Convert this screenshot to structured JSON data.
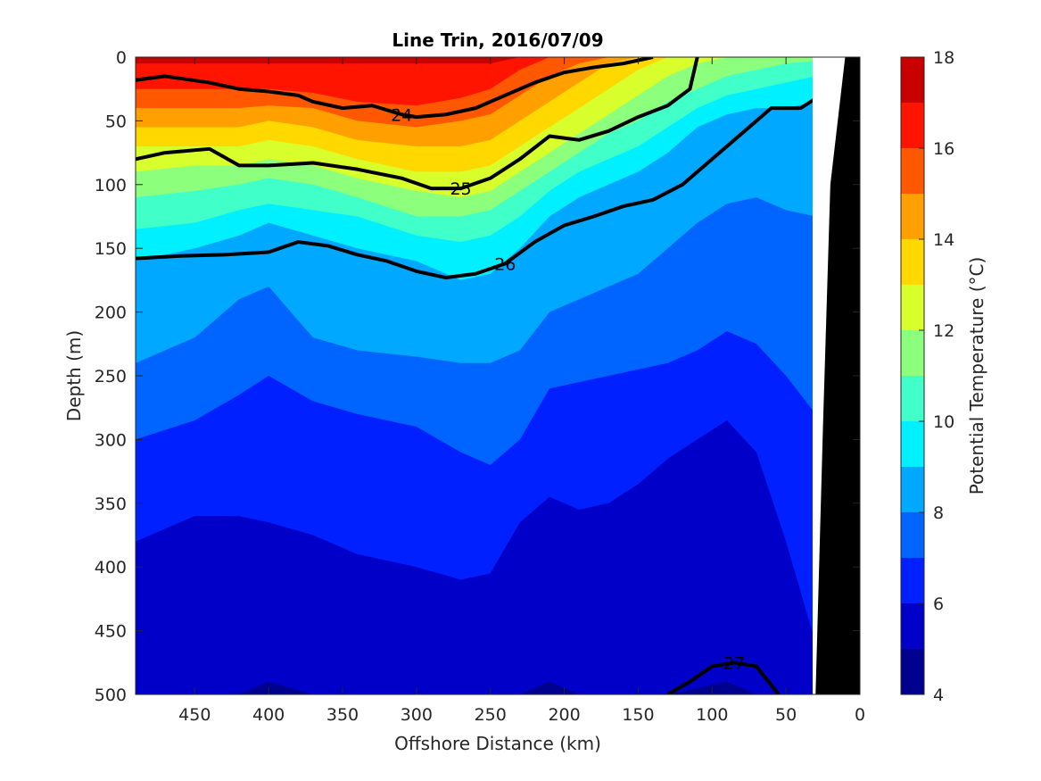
{
  "chart_data": {
    "type": "heatmap",
    "title": "Line Trin, 2016/07/09",
    "xlabel": "Offshore Distance (km)",
    "ylabel": "Depth (m)",
    "xlim": [
      490,
      0
    ],
    "ylim": [
      0,
      500
    ],
    "x_reversed": true,
    "y_reversed": true,
    "xticks": [
      450,
      400,
      350,
      300,
      250,
      200,
      150,
      100,
      50,
      0
    ],
    "yticks": [
      0,
      50,
      100,
      150,
      200,
      250,
      300,
      350,
      400,
      450,
      500
    ],
    "colorbar": {
      "label": "Potential Temperature (°C)",
      "min": 4,
      "max": 18,
      "ticks": [
        4,
        6,
        8,
        10,
        12,
        14,
        16,
        18
      ],
      "level_step": 1,
      "colors": [
        "#00008f",
        "#0000c8",
        "#0020ff",
        "#0064ff",
        "#00a8ff",
        "#00f0ff",
        "#40ffc8",
        "#8cff7c",
        "#d8ff2c",
        "#ffd800",
        "#ffa000",
        "#ff5800",
        "#ff1400",
        "#c80000"
      ]
    },
    "temperature_field": {
      "description_levels": "isotherm depths (m) at each offshore distance (km)",
      "x": [
        490,
        450,
        420,
        400,
        370,
        340,
        300,
        270,
        250,
        230,
        210,
        190,
        170,
        150,
        130,
        110,
        90,
        70,
        50,
        30
      ],
      "isotherm_depth": {
        "5": [
          500,
          500,
          500,
          490,
          500,
          500,
          500,
          500,
          500,
          500,
          490,
          500,
          500,
          500,
          500,
          495,
          490,
          500,
          500,
          500
        ],
        "6": [
          380,
          360,
          360,
          365,
          375,
          390,
          400,
          410,
          405,
          365,
          345,
          355,
          350,
          335,
          315,
          300,
          285,
          310,
          380,
          460
        ],
        "7": [
          300,
          285,
          265,
          250,
          270,
          280,
          290,
          310,
          320,
          300,
          260,
          255,
          250,
          245,
          240,
          230,
          215,
          225,
          250,
          280
        ],
        "8": [
          240,
          220,
          190,
          180,
          220,
          230,
          235,
          240,
          240,
          230,
          200,
          190,
          180,
          170,
          150,
          130,
          115,
          110,
          120,
          125
        ],
        "9": [
          160,
          150,
          140,
          130,
          140,
          150,
          160,
          175,
          170,
          150,
          125,
          110,
          100,
          90,
          75,
          55,
          45,
          40,
          40,
          35
        ],
        "10": [
          135,
          130,
          120,
          115,
          120,
          125,
          140,
          145,
          140,
          125,
          105,
          90,
          80,
          70,
          55,
          40,
          30,
          25,
          20,
          15
        ],
        "11": [
          110,
          105,
          100,
          95,
          100,
          110,
          125,
          125,
          120,
          105,
          90,
          75,
          60,
          50,
          35,
          25,
          15,
          10,
          5,
          3
        ],
        "12": [
          90,
          85,
          85,
          80,
          85,
          95,
          105,
          110,
          105,
          90,
          75,
          60,
          45,
          30,
          15,
          5,
          0,
          0,
          0,
          0
        ],
        "13": [
          70,
          70,
          70,
          65,
          70,
          80,
          90,
          90,
          85,
          70,
          55,
          40,
          25,
          10,
          0,
          0,
          0,
          0,
          0,
          0
        ],
        "14": [
          55,
          55,
          55,
          50,
          55,
          65,
          70,
          70,
          65,
          50,
          35,
          20,
          5,
          0,
          0,
          0,
          0,
          0,
          0,
          0
        ],
        "15": [
          40,
          40,
          40,
          38,
          40,
          50,
          55,
          50,
          45,
          30,
          15,
          5,
          0,
          0,
          0,
          0,
          0,
          0,
          0,
          0
        ],
        "16": [
          25,
          25,
          25,
          25,
          28,
          35,
          38,
          32,
          25,
          10,
          0,
          0,
          0,
          0,
          0,
          0,
          0,
          0,
          0,
          0
        ],
        "17": [
          5,
          5,
          5,
          5,
          5,
          5,
          5,
          5,
          5,
          0,
          0,
          0,
          0,
          0,
          0,
          0,
          0,
          0,
          0,
          0
        ]
      }
    },
    "density_contours": [
      {
        "level": 24,
        "label": "24",
        "bold": true,
        "points": [
          [
            490,
            18
          ],
          [
            470,
            15
          ],
          [
            440,
            20
          ],
          [
            420,
            25
          ],
          [
            400,
            27
          ],
          [
            380,
            30
          ],
          [
            370,
            35
          ],
          [
            350,
            40
          ],
          [
            330,
            38
          ],
          [
            310,
            45
          ],
          [
            300,
            47
          ],
          [
            280,
            45
          ],
          [
            260,
            40
          ],
          [
            240,
            30
          ],
          [
            220,
            20
          ],
          [
            200,
            12
          ],
          [
            180,
            8
          ],
          [
            160,
            5
          ],
          [
            140,
            0
          ]
        ]
      },
      {
        "level": 25,
        "label": "25",
        "bold": true,
        "points": [
          [
            490,
            80
          ],
          [
            470,
            75
          ],
          [
            440,
            72
          ],
          [
            420,
            85
          ],
          [
            400,
            85
          ],
          [
            370,
            83
          ],
          [
            340,
            88
          ],
          [
            310,
            95
          ],
          [
            290,
            103
          ],
          [
            270,
            103
          ],
          [
            250,
            95
          ],
          [
            230,
            80
          ],
          [
            210,
            62
          ],
          [
            190,
            65
          ],
          [
            170,
            58
          ],
          [
            150,
            47
          ],
          [
            130,
            38
          ],
          [
            115,
            25
          ],
          [
            110,
            0
          ]
        ]
      },
      {
        "level": 26,
        "label": "26",
        "bold": true,
        "points": [
          [
            490,
            158
          ],
          [
            460,
            156
          ],
          [
            430,
            155
          ],
          [
            400,
            153
          ],
          [
            380,
            145
          ],
          [
            360,
            148
          ],
          [
            340,
            155
          ],
          [
            320,
            160
          ],
          [
            300,
            168
          ],
          [
            280,
            173
          ],
          [
            260,
            170
          ],
          [
            240,
            162
          ],
          [
            220,
            145
          ],
          [
            200,
            132
          ],
          [
            180,
            125
          ],
          [
            160,
            117
          ],
          [
            140,
            112
          ],
          [
            120,
            100
          ],
          [
            100,
            80
          ],
          [
            80,
            60
          ],
          [
            60,
            40
          ],
          [
            40,
            40
          ],
          [
            20,
            25
          ]
        ]
      },
      {
        "level": 27,
        "label": "27",
        "bold": true,
        "points": [
          [
            130,
            500
          ],
          [
            115,
            490
          ],
          [
            100,
            478
          ],
          [
            85,
            475
          ],
          [
            70,
            478
          ],
          [
            55,
            500
          ]
        ]
      }
    ],
    "bathymetry": {
      "description": "seafloor (black) near shore",
      "points": [
        [
          30,
          500
        ],
        [
          25,
          290
        ],
        [
          20,
          100
        ],
        [
          10,
          0
        ],
        [
          0,
          0
        ],
        [
          0,
          500
        ]
      ]
    }
  }
}
